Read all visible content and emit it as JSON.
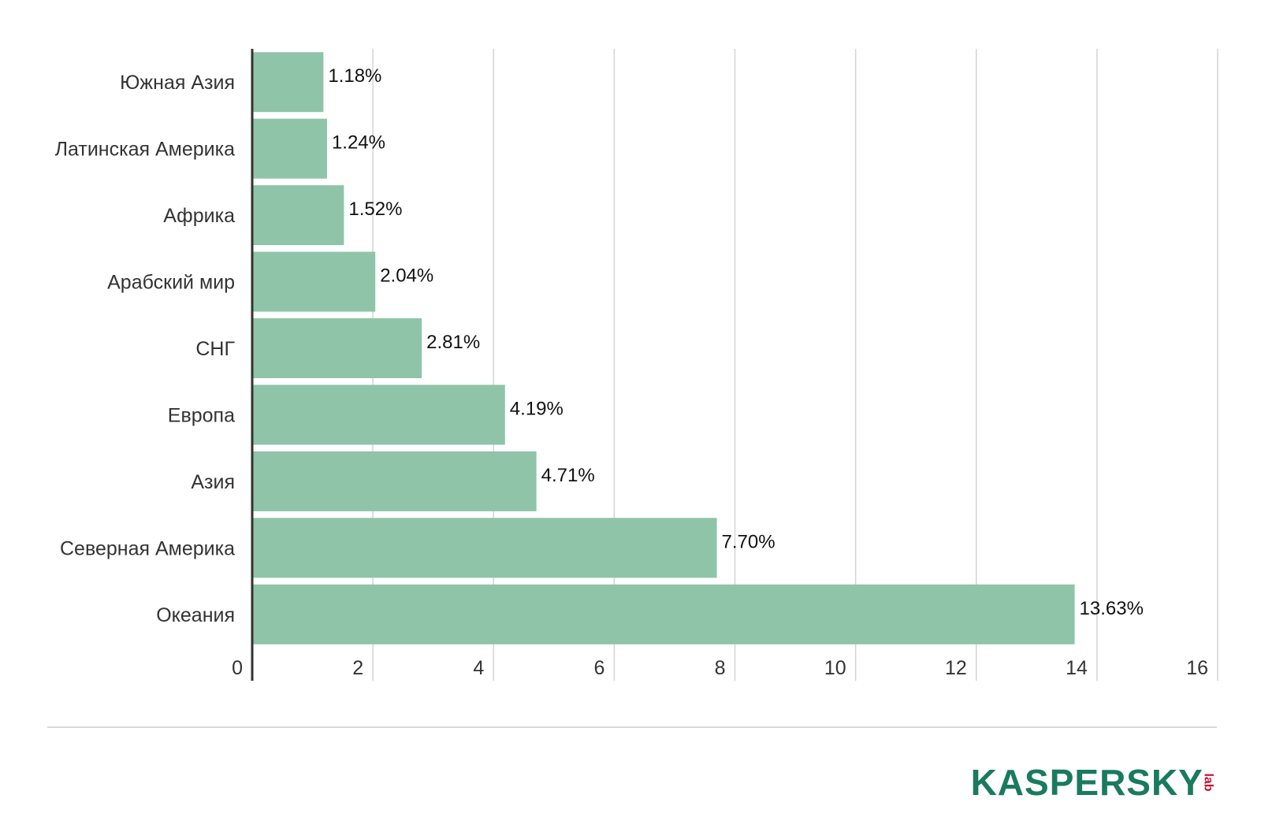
{
  "chart_data": {
    "type": "bar",
    "orientation": "horizontal",
    "categories": [
      "Южная Азия",
      "Латинская Америка",
      "Африка",
      "Арабский мир",
      "СНГ",
      "Европа",
      "Азия",
      "Северная Америка",
      "Океания"
    ],
    "values": [
      1.18,
      1.24,
      1.52,
      2.04,
      2.81,
      4.19,
      4.71,
      7.7,
      13.63
    ],
    "data_labels": [
      "1.18%",
      "1.24%",
      "1.52%",
      "2.04%",
      "2.81%",
      "4.19%",
      "4.71%",
      "7.70%",
      "13.63%"
    ],
    "xlim": [
      0,
      16
    ],
    "xticks": [
      "0",
      "2",
      "4",
      "6",
      "8",
      "10",
      "12",
      "14",
      "16"
    ],
    "grid": "vertical",
    "bar_color": "#8fc4a8",
    "grid_color": "#d4d4d4",
    "axis_color": "#333333"
  },
  "logo": {
    "word": "KASPERSKY",
    "sub": "lab",
    "color": "#1a7a5e",
    "sub_color": "#c8102e"
  }
}
